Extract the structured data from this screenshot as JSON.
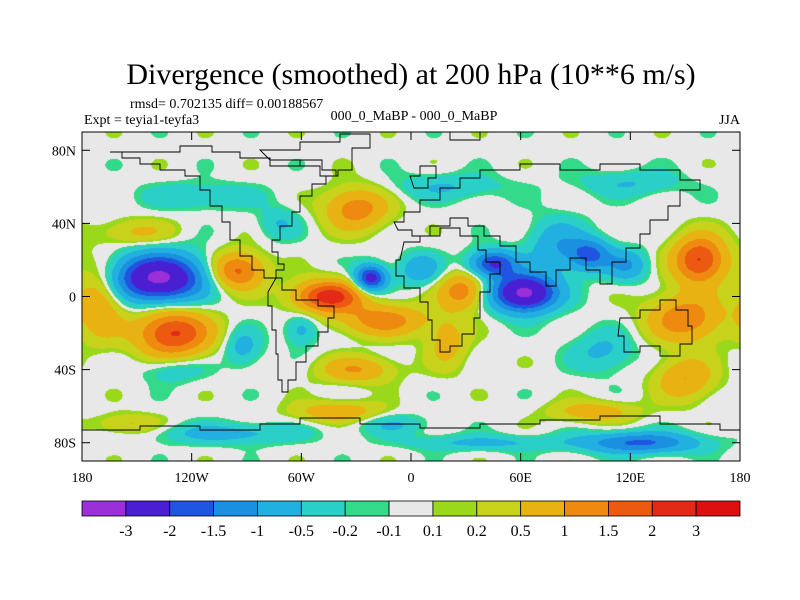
{
  "chart_data": {
    "type": "heatmap",
    "title": "Divergence (smoothed) at 200 hPa (10**6 m/s)",
    "stats_line": "rmsd= 0.702135 diff= 0.00188567",
    "experiment_label": "Expt = teyia1-teyfa3",
    "center_subtitle": "000_0_MaBP - 000_0_MaBP",
    "season_label": "JJA",
    "xlim": [
      -180,
      180
    ],
    "ylim": [
      -90,
      90
    ],
    "x_ticks": [
      {
        "value": -180,
        "label": "180"
      },
      {
        "value": -120,
        "label": "120W"
      },
      {
        "value": -60,
        "label": "60W"
      },
      {
        "value": 0,
        "label": "0"
      },
      {
        "value": 60,
        "label": "60E"
      },
      {
        "value": 120,
        "label": "120E"
      },
      {
        "value": 180,
        "label": "180"
      }
    ],
    "y_ticks": [
      {
        "value": 80,
        "label": "80N"
      },
      {
        "value": 40,
        "label": "40N"
      },
      {
        "value": 0,
        "label": "0"
      },
      {
        "value": -40,
        "label": "40S"
      },
      {
        "value": -80,
        "label": "80S"
      }
    ],
    "colorbar": {
      "boundaries": [
        "-3",
        "-2",
        "-1.5",
        "-1",
        "-0.5",
        "-0.2",
        "-0.1",
        "0.1",
        "0.2",
        "0.5",
        "1",
        "1.5",
        "2",
        "3"
      ],
      "colors": [
        "#9b2fd8",
        "#4a1fd2",
        "#1f55e0",
        "#1b8fe0",
        "#22b0e0",
        "#2ad0c8",
        "#34d98a",
        "#e8e8e8",
        "#9ad81c",
        "#c8d21a",
        "#e8b312",
        "#ef8a10",
        "#ec5a12",
        "#e22a16",
        "#dd1010"
      ]
    },
    "anomalies": [
      {
        "lon": -138,
        "lat": 10,
        "sx": 17,
        "sy": 9,
        "v": -3.2
      },
      {
        "lon": -130,
        "lat": -20,
        "sx": 14,
        "sy": 9,
        "v": 2.1
      },
      {
        "lon": -95,
        "lat": 14,
        "sx": 10,
        "sy": 7,
        "v": 1.7
      },
      {
        "lon": -92,
        "lat": -28,
        "sx": 7,
        "sy": 7,
        "v": -0.7
      },
      {
        "lon": -72,
        "lat": 40,
        "sx": 8,
        "sy": 6,
        "v": -0.5
      },
      {
        "lon": -45,
        "lat": 0,
        "sx": 13,
        "sy": 6,
        "v": 2.3
      },
      {
        "lon": -22,
        "lat": 10,
        "sx": 6,
        "sy": 5,
        "v": -2.4
      },
      {
        "lon": -15,
        "lat": -13,
        "sx": 16,
        "sy": 6,
        "v": 1.3
      },
      {
        "lon": -30,
        "lat": -40,
        "sx": 14,
        "sy": 5,
        "v": 1.0
      },
      {
        "lon": -60,
        "lat": -18,
        "sx": 6,
        "sy": 6,
        "v": -0.7
      },
      {
        "lon": -30,
        "lat": 48,
        "sx": 12,
        "sy": 8,
        "v": 1.3
      },
      {
        "lon": 5,
        "lat": 15,
        "sx": 8,
        "sy": 6,
        "v": -0.9
      },
      {
        "lon": 28,
        "lat": 3,
        "sx": 9,
        "sy": 7,
        "v": 1.3
      },
      {
        "lon": 20,
        "lat": -25,
        "sx": 8,
        "sy": 10,
        "v": 0.7
      },
      {
        "lon": 45,
        "lat": 18,
        "sx": 9,
        "sy": 5,
        "v": -2.1
      },
      {
        "lon": 62,
        "lat": 2,
        "sx": 12,
        "sy": 7,
        "v": -3.3
      },
      {
        "lon": 80,
        "lat": 28,
        "sx": 11,
        "sy": 10,
        "v": -0.9
      },
      {
        "lon": 98,
        "lat": 23,
        "sx": 8,
        "sy": 6,
        "v": -1.6
      },
      {
        "lon": 118,
        "lat": 17,
        "sx": 8,
        "sy": 6,
        "v": -1.0
      },
      {
        "lon": 158,
        "lat": 20,
        "sx": 10,
        "sy": 9,
        "v": 2.1
      },
      {
        "lon": 150,
        "lat": -12,
        "sx": 14,
        "sy": 9,
        "v": 1.4
      },
      {
        "lon": 105,
        "lat": -30,
        "sx": 12,
        "sy": 8,
        "v": -0.6
      },
      {
        "lon": 150,
        "lat": -45,
        "sx": 11,
        "sy": 8,
        "v": 1.0
      },
      {
        "lon": -170,
        "lat": -3,
        "sx": 9,
        "sy": 14,
        "v": 1.0
      },
      {
        "lon": -130,
        "lat": -40,
        "sx": 12,
        "sy": 5,
        "v": -0.5
      },
      {
        "lon": -115,
        "lat": 55,
        "sx": 22,
        "sy": 5,
        "v": -0.5
      },
      {
        "lon": 20,
        "lat": 60,
        "sx": 22,
        "sy": 5,
        "v": -0.5
      },
      {
        "lon": 120,
        "lat": 62,
        "sx": 20,
        "sy": 5,
        "v": -0.5
      },
      {
        "lon": -100,
        "lat": -75,
        "sx": 28,
        "sy": 4,
        "v": -0.7
      },
      {
        "lon": 40,
        "lat": -80,
        "sx": 30,
        "sy": 3,
        "v": -0.6
      },
      {
        "lon": 125,
        "lat": -80,
        "sx": 22,
        "sy": 4,
        "v": -1.6
      },
      {
        "lon": -40,
        "lat": -63,
        "sx": 16,
        "sy": 4,
        "v": 0.9
      },
      {
        "lon": 100,
        "lat": -63,
        "sx": 16,
        "sy": 4,
        "v": 0.8
      },
      {
        "lon": -10,
        "lat": -70,
        "sx": 14,
        "sy": 4,
        "v": -0.5
      },
      {
        "lon": -155,
        "lat": -70,
        "sx": 12,
        "sy": 4,
        "v": 0.6
      },
      {
        "lon": -150,
        "lat": 35,
        "sx": 14,
        "sy": 5,
        "v": 0.6
      }
    ]
  }
}
